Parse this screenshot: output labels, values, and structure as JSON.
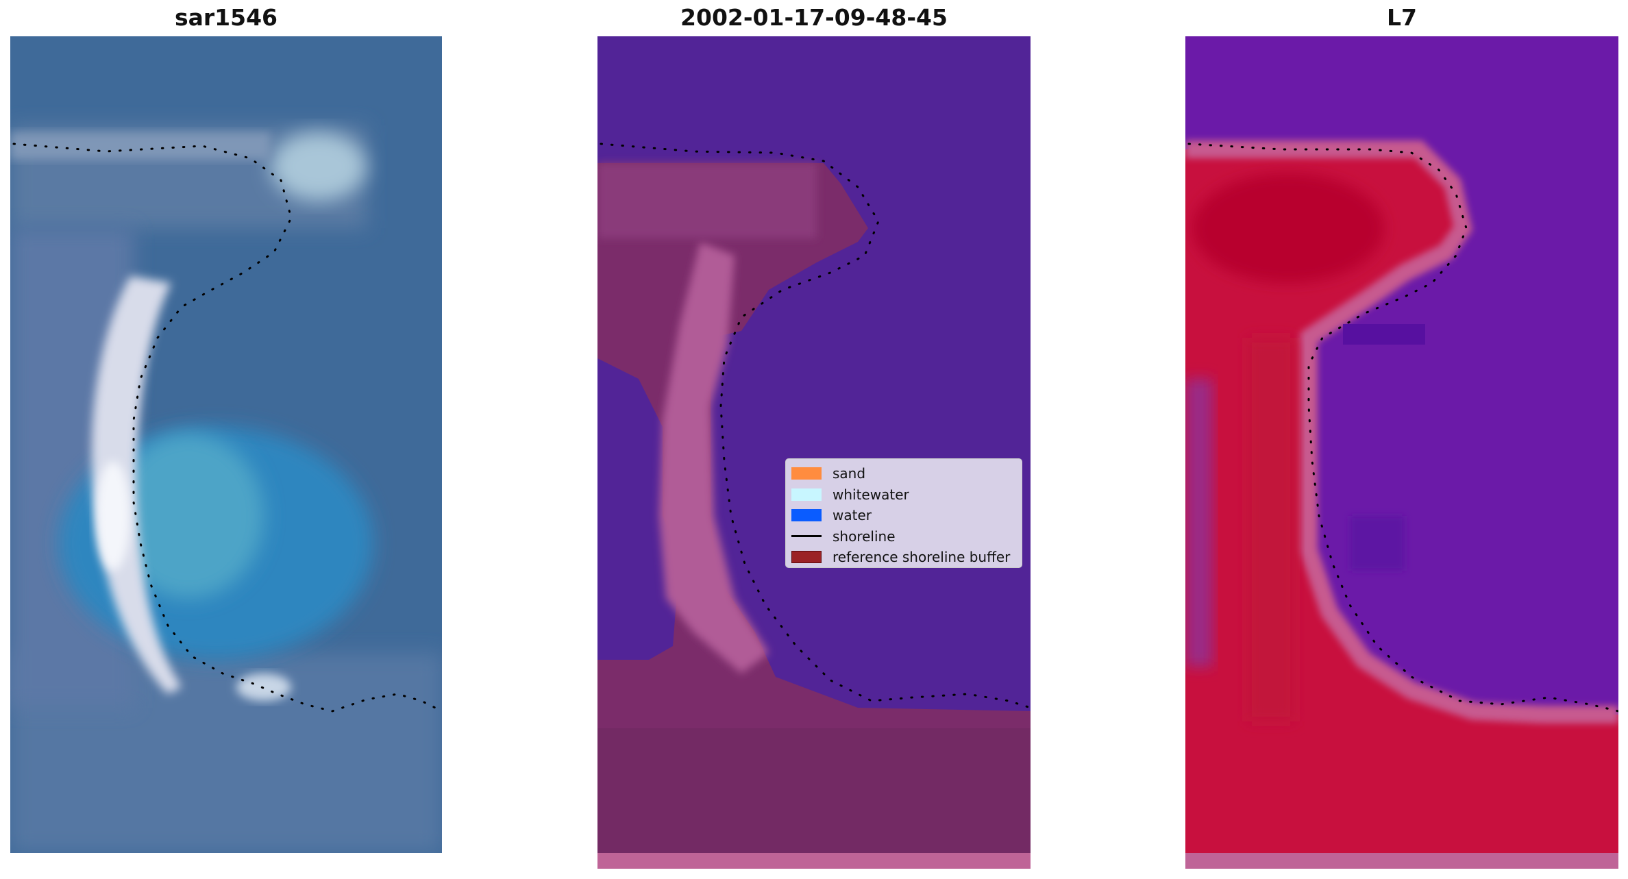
{
  "panels": [
    {
      "title": "sar1546"
    },
    {
      "title": "2002-01-17-09-48-45"
    },
    {
      "title": "L7"
    }
  ],
  "legend": {
    "items": [
      {
        "label": "sand",
        "color": "#ff8c3f",
        "kind": "patch"
      },
      {
        "label": "whitewater",
        "color": "#c8f6ff",
        "kind": "patch"
      },
      {
        "label": "water",
        "color": "#0a5cff",
        "kind": "patch"
      },
      {
        "label": "shoreline",
        "color": "#000000",
        "kind": "line"
      },
      {
        "label": "reference shoreline buffer",
        "color": "#9b2226",
        "kind": "patch-border"
      }
    ]
  },
  "colors": {
    "rgb_water": "#3a6ea0",
    "class_background": "#522497",
    "class_buffer": "#7b2c6a",
    "ndwi_water": "#6b1aa8",
    "ndwi_land": "#c8103e",
    "pad_strip": "#bf6497"
  }
}
